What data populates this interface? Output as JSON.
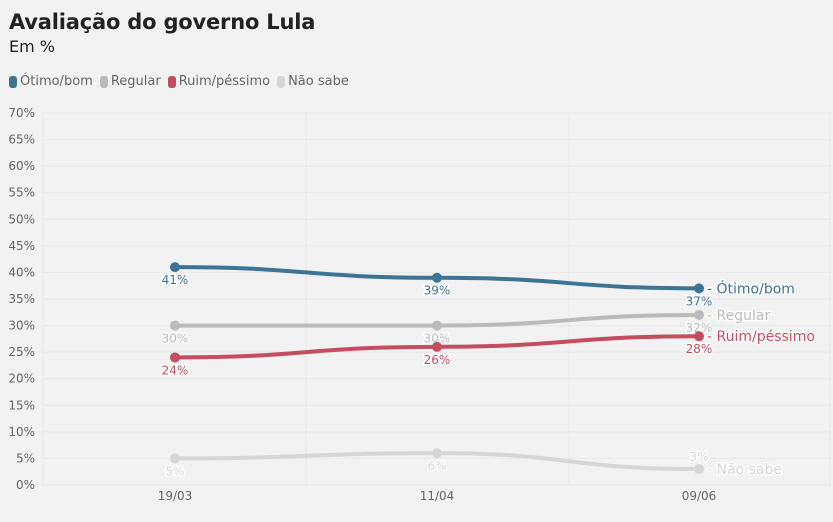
{
  "chart_data": {
    "type": "line",
    "title": "Avaliação do governo Lula",
    "subtitle": "Em %",
    "xlabel": "",
    "ylabel": "",
    "categories": [
      "19/03",
      "11/04",
      "09/06"
    ],
    "ylim": [
      0,
      70
    ],
    "yticks": [
      "0%",
      "5%",
      "10%",
      "15%",
      "20%",
      "25%",
      "30%",
      "35%",
      "40%",
      "45%",
      "50%",
      "55%",
      "60%",
      "65%",
      "70%"
    ],
    "grid": true,
    "legend_position": "top-left",
    "series": [
      {
        "name": "Ótimo/bom",
        "color": "#3d7393",
        "values": [
          41,
          39,
          37
        ],
        "labels": [
          "41%",
          "39%",
          "37%"
        ],
        "label_pos": "below"
      },
      {
        "name": "Regular",
        "color": "#bbbbbb",
        "values": [
          30,
          30,
          32
        ],
        "labels": [
          "30%",
          "30%",
          "32%"
        ],
        "label_pos": "below"
      },
      {
        "name": "Ruim/péssimo",
        "color": "#c44e60",
        "values": [
          24,
          26,
          28
        ],
        "labels": [
          "24%",
          "26%",
          "28%"
        ],
        "label_pos": "below"
      },
      {
        "name": "Não sabe",
        "color": "#d6d6d6",
        "values": [
          5,
          6,
          3
        ],
        "labels": [
          "5%",
          "6%",
          "3%"
        ],
        "label_pos": "mixed"
      }
    ]
  }
}
